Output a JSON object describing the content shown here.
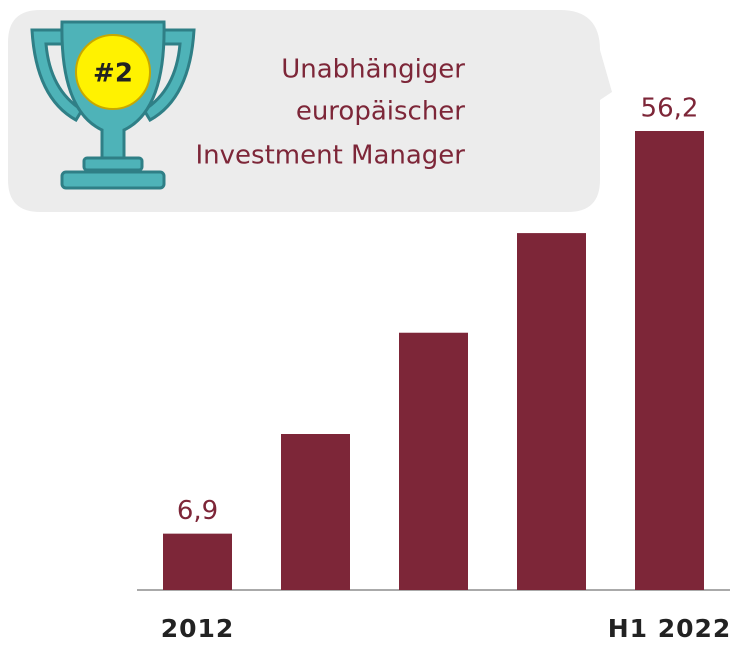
{
  "chart_data": {
    "type": "bar",
    "annotation": {
      "badge": "#2",
      "lines": [
        "Unabhängiger",
        "europäischer",
        "Investment Manager"
      ]
    },
    "categories": [
      "2012",
      null,
      null,
      null,
      "H1 2022"
    ],
    "values": [
      6.9,
      19.1,
      31.5,
      43.7,
      56.2
    ],
    "value_labels": [
      "6,9",
      null,
      null,
      null,
      "56,2"
    ],
    "color": "#7d2638"
  }
}
